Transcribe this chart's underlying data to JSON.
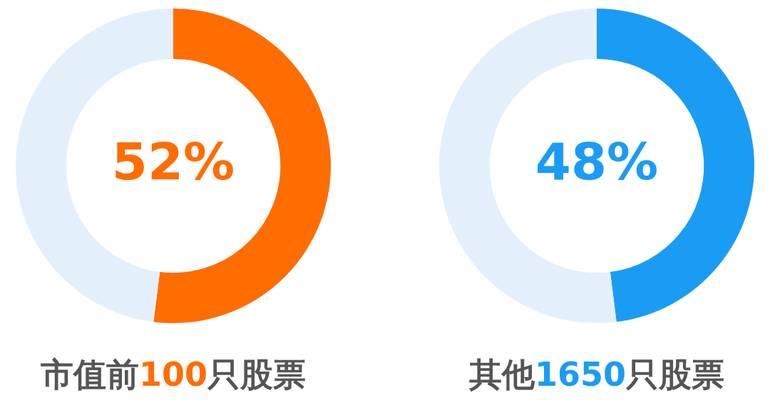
{
  "chart_data": [
    {
      "type": "donut",
      "title": "市值前100只股票",
      "categories": [
        null,
        null
      ],
      "values": [
        52,
        48
      ],
      "colors": [
        "#ff6d00",
        "#e3f0fc"
      ],
      "value_labels": [
        "52%",
        null
      ]
    },
    {
      "type": "donut",
      "title": "其他1650只股票",
      "categories": [
        null,
        null
      ],
      "values": [
        48,
        52
      ],
      "colors": [
        "#1a9cf5",
        "#e3f0fc"
      ],
      "value_labels": [
        "48%",
        null
      ]
    }
  ]
}
